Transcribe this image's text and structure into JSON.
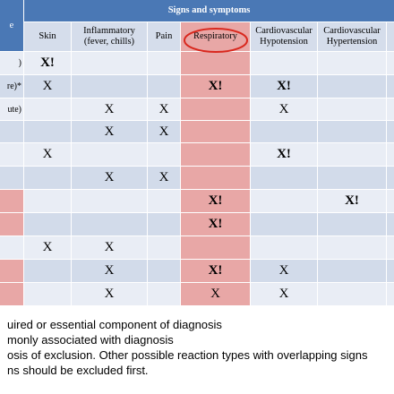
{
  "table": {
    "group_header": "Signs and symptoms",
    "corner": "e",
    "columns": [
      "Skin",
      "Inflammatory (fever, chills)",
      "Pain",
      "Respiratory",
      "Cardiovascular Hypotension",
      "Cardiovascular Hypertension"
    ],
    "rows": [
      {
        "label": ")",
        "cells": [
          "X!",
          null,
          null,
          null,
          null,
          null
        ]
      },
      {
        "label": "re)*",
        "cells": [
          "X",
          null,
          null,
          "X!",
          "X!",
          null
        ]
      },
      {
        "label": "ute)",
        "cells": [
          null,
          "X",
          "X",
          null,
          "X",
          null
        ]
      },
      {
        "label": null,
        "cells": [
          null,
          "X",
          "X",
          null,
          null,
          null
        ]
      },
      {
        "label": null,
        "cells": [
          "X",
          null,
          null,
          null,
          "X!",
          null
        ]
      },
      {
        "label": null,
        "cells": [
          null,
          "X",
          "X",
          null,
          null,
          null
        ]
      },
      {
        "label": null,
        "cells": [
          null,
          null,
          null,
          "X!",
          null,
          "X!"
        ]
      },
      {
        "label": null,
        "cells": [
          null,
          null,
          null,
          "X!",
          null,
          null
        ]
      },
      {
        "label": null,
        "cells": [
          "X",
          "X",
          null,
          null,
          null,
          null
        ]
      },
      {
        "label": null,
        "cells": [
          null,
          "X",
          null,
          "X!",
          "X",
          null
        ]
      },
      {
        "label": null,
        "cells": [
          null,
          "X",
          null,
          "X",
          "X",
          null
        ]
      }
    ]
  },
  "footnotes": [
    "uired or essential component of diagnosis",
    "monly associated with diagnosis",
    "osis of exclusion.  Other possible reaction types with overlapping signs",
    "ns should be excluded first."
  ]
}
